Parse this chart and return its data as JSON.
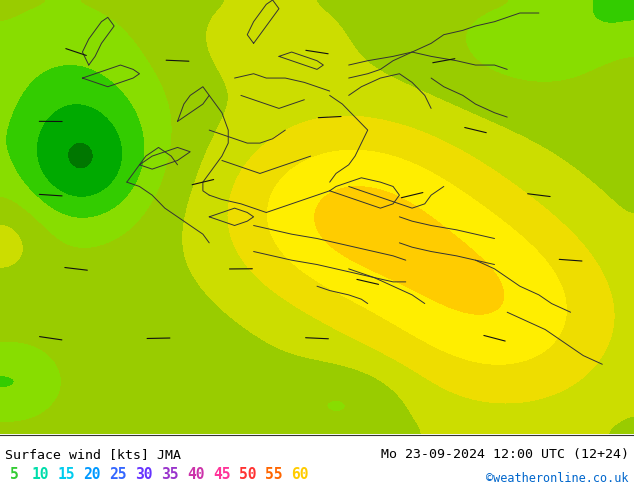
{
  "title_left": "Surface wind [kts] JMA",
  "title_right": "Mo 23-09-2024 12:00 UTC (12+24)",
  "credit": "©weatheronline.co.uk",
  "legend_values": [
    "5",
    "10",
    "15",
    "20",
    "25",
    "30",
    "35",
    "40",
    "45",
    "50",
    "55",
    "60"
  ],
  "legend_colors": [
    "#33cc33",
    "#00ddaa",
    "#00ccee",
    "#0099ff",
    "#3366ff",
    "#6633ff",
    "#9933cc",
    "#cc33aa",
    "#ff3399",
    "#ff3333",
    "#ff6600",
    "#ffcc00"
  ],
  "bg_color": "#ffffff",
  "figsize": [
    6.34,
    4.9
  ],
  "dpi": 100,
  "contour_levels": [
    0,
    5,
    10,
    15,
    20,
    25,
    30,
    35,
    40,
    45,
    50,
    55,
    60,
    70
  ],
  "contour_colors": [
    "#007700",
    "#00aa00",
    "#33cc00",
    "#88dd00",
    "#99cc00",
    "#ccdd00",
    "#eedd00",
    "#ffee00",
    "#ffcc00",
    "#ffaa00",
    "#ff8800",
    "#ff5500",
    "#cc0000"
  ]
}
